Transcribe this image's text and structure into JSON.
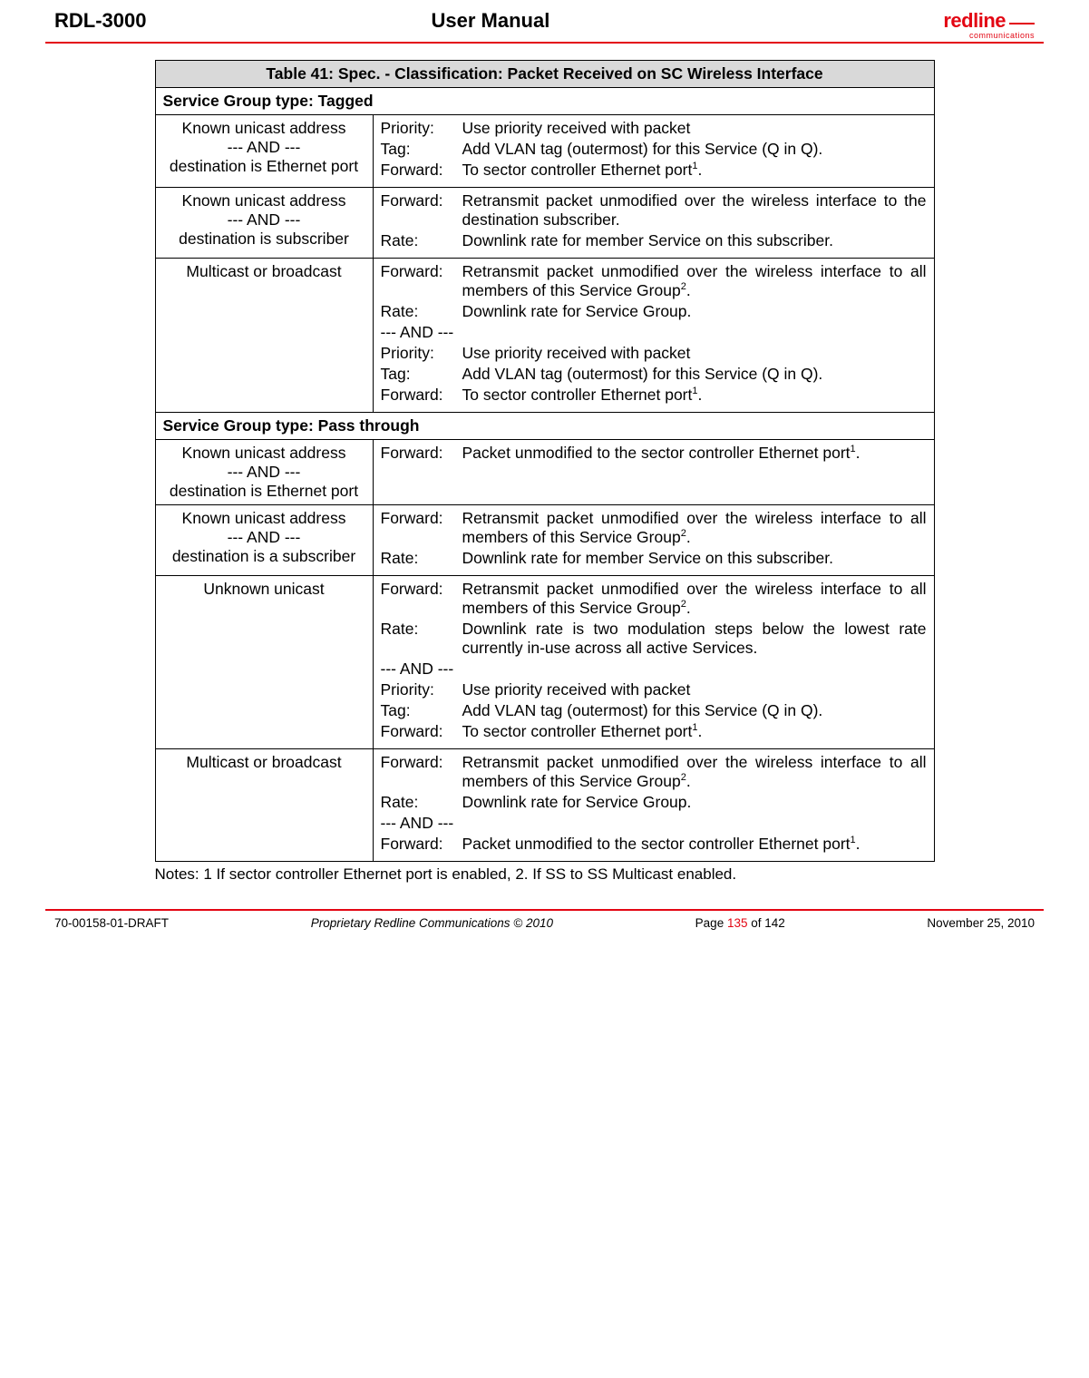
{
  "header": {
    "left": "RDL-3000",
    "center": "User Manual",
    "logo_main": "redline",
    "logo_sub": "communications"
  },
  "table": {
    "title_prefix": "Table 41",
    "title_rest": ": Spec. - Classification: Packet Received on SC Wireless Interface",
    "section_tagged": "Service Group type: Tagged",
    "section_pass": "Service Group type: Pass through",
    "labels": {
      "priority": "Priority:",
      "tag": "Tag:",
      "forward": "Forward:",
      "rate": "Rate:",
      "and": "--- AND ---"
    },
    "rows": {
      "r1_left_l1": "Known unicast address",
      "r1_left_l2": "--- AND ---",
      "r1_left_l3": "destination is Ethernet port",
      "r1_p": "Use priority received with packet",
      "r1_t": "Add VLAN tag (outermost) for this Service (Q in Q).",
      "r1_f": "To sector controller Ethernet port",
      "r2_left_l1": "Known unicast address",
      "r2_left_l2": "--- AND ---",
      "r2_left_l3": "destination is subscriber",
      "r2_f": "Retransmit packet unmodified over the wireless interface to the destination subscriber.",
      "r2_r": "Downlink rate for member Service on this subscriber.",
      "r3_left": "Multicast or broadcast",
      "r3_f": "Retransmit packet unmodified over the wireless interface to all members of this Service Group",
      "r3_r": "Downlink rate for Service Group.",
      "r3_p": "Use priority received with packet",
      "r3_t": "Add VLAN tag (outermost) for this Service (Q in Q).",
      "r3_f2": "To sector controller Ethernet port",
      "r4_left_l1": "Known unicast address",
      "r4_left_l2": "--- AND ---",
      "r4_left_l3": "destination is Ethernet port",
      "r4_f": "Packet unmodified to the sector controller Ethernet port",
      "r5_left_l1": "Known unicast address",
      "r5_left_l2": "--- AND ---",
      "r5_left_l3": "destination is a subscriber",
      "r5_f": "Retransmit packet unmodified over the wireless interface to all members of this Service Group",
      "r5_r": "Downlink rate for member Service on this subscriber.",
      "r6_left": "Unknown unicast",
      "r6_f": "Retransmit packet unmodified over the wireless interface to all members of this Service Group",
      "r6_r": "Downlink rate is two modulation steps below the lowest rate currently in-use across all active Services.",
      "r6_p": "Use priority received with packet",
      "r6_t": "Add VLAN tag (outermost) for this Service (Q in Q).",
      "r6_f2": "To sector controller Ethernet port",
      "r7_left": "Multicast or broadcast",
      "r7_f": "Retransmit packet unmodified over the wireless interface to all members of this Service Group",
      "r7_r": "Downlink rate for Service Group.",
      "r7_f2": "Packet unmodified to the sector controller Ethernet port"
    }
  },
  "notes": "Notes: 1 If sector controller Ethernet port is enabled, 2. If SS to SS Multicast enabled.",
  "footer": {
    "left": "70-00158-01-DRAFT",
    "mid": "Proprietary Redline Communications © 2010",
    "page_a": "Page ",
    "page_n": "135",
    "page_b": " of 142",
    "right": "November 25, 2010"
  },
  "sup1": "1",
  "sup2": "2",
  "period": "."
}
